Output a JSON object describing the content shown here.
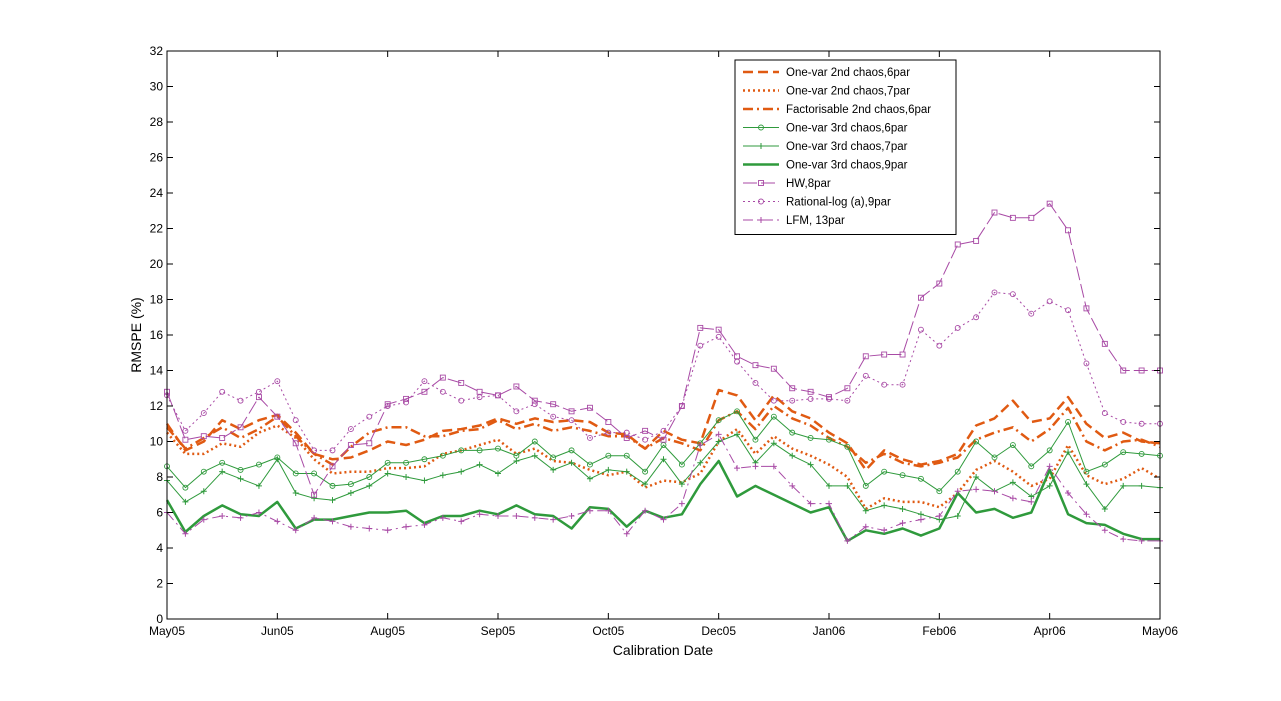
{
  "chart_data": {
    "type": "line",
    "title": "",
    "xlabel": "Calibration Date",
    "ylabel": "RMSPE (%)",
    "xlim": [
      0,
      54
    ],
    "ylim": [
      0,
      32
    ],
    "yticks": [
      0,
      2,
      4,
      6,
      8,
      10,
      12,
      14,
      16,
      18,
      20,
      22,
      24,
      26,
      28,
      30,
      32
    ],
    "xtick_positions": [
      0,
      6,
      12,
      18,
      24,
      30,
      36,
      42,
      48,
      54
    ],
    "xtick_labels": [
      "May05",
      "Jun05",
      "Aug05",
      "Sep05",
      "Oct05",
      "Dec05",
      "Jan06",
      "Feb06",
      "Apr06",
      "May06"
    ],
    "legend_position": "top-right",
    "grid": false,
    "x": [
      0,
      1,
      2,
      3,
      4,
      5,
      6,
      7,
      8,
      9,
      10,
      11,
      12,
      13,
      14,
      15,
      16,
      17,
      18,
      19,
      20,
      21,
      22,
      23,
      24,
      25,
      26,
      27,
      28,
      29,
      30,
      31,
      32,
      33,
      34,
      35,
      36,
      37,
      38,
      39,
      40,
      41,
      42,
      43,
      44,
      45,
      46,
      47,
      48,
      49,
      50,
      51,
      52,
      53,
      54
    ],
    "series": [
      {
        "name": "One-var 2nd chaos,6par",
        "color": "#e05a12",
        "dash": "dashed",
        "width": 2.5,
        "marker": "none",
        "values": [
          11.0,
          9.5,
          10.0,
          11.2,
          10.7,
          11.2,
          11.5,
          10.5,
          9.3,
          9.0,
          9.1,
          9.5,
          10.0,
          9.8,
          10.1,
          10.6,
          10.7,
          10.9,
          11.3,
          11.0,
          11.3,
          11.1,
          11.2,
          11.1,
          10.5,
          10.4,
          9.6,
          10.6,
          10.1,
          9.9,
          12.9,
          12.6,
          11.2,
          12.6,
          11.7,
          11.3,
          10.5,
          9.9,
          8.4,
          9.5,
          9.0,
          8.7,
          8.9,
          9.3,
          10.9,
          11.3,
          12.3,
          11.1,
          11.3,
          12.5,
          11.0,
          10.2,
          10.5,
          10.0,
          9.9
        ]
      },
      {
        "name": "One-var 2nd chaos,7par",
        "color": "#e05a12",
        "dash": "dotted",
        "width": 2.5,
        "marker": "none",
        "values": [
          10.5,
          9.3,
          9.3,
          9.9,
          9.7,
          10.5,
          10.9,
          10.2,
          9.0,
          8.2,
          8.3,
          8.3,
          8.5,
          8.5,
          8.6,
          9.3,
          9.5,
          9.8,
          10.1,
          9.3,
          9.6,
          8.9,
          8.8,
          8.4,
          8.1,
          8.3,
          7.4,
          7.8,
          7.7,
          8.2,
          10.0,
          10.7,
          9.3,
          10.3,
          9.6,
          9.2,
          8.7,
          8.0,
          6.2,
          6.8,
          6.6,
          6.6,
          6.3,
          7.1,
          8.4,
          8.9,
          8.3,
          7.5,
          7.9,
          9.8,
          8.1,
          7.6,
          7.9,
          8.5,
          7.9
        ]
      },
      {
        "name": "Factorisable 2nd chaos,6par",
        "color": "#e05a12",
        "dash": "dashdot",
        "width": 2.5,
        "marker": "none",
        "values": [
          10.8,
          9.6,
          10.2,
          10.8,
          10.2,
          10.7,
          11.4,
          10.3,
          9.3,
          8.7,
          9.7,
          10.5,
          10.8,
          10.8,
          10.3,
          10.3,
          10.6,
          10.7,
          11.2,
          10.7,
          11.0,
          10.6,
          10.8,
          10.6,
          10.3,
          10.3,
          9.6,
          10.2,
          9.9,
          9.5,
          11.2,
          11.7,
          10.7,
          12.0,
          11.3,
          10.9,
          10.2,
          9.7,
          8.8,
          9.3,
          8.8,
          8.6,
          8.8,
          9.1,
          10.1,
          10.5,
          10.8,
          10.0,
          10.7,
          11.9,
          10.0,
          9.5,
          10.0,
          10.1,
          9.7
        ]
      },
      {
        "name": "One-var 3rd chaos,6par",
        "color": "#2f9a3c",
        "dash": "solid",
        "width": 1,
        "marker": "circle",
        "values": [
          8.6,
          7.4,
          8.3,
          8.8,
          8.4,
          8.7,
          9.1,
          8.2,
          8.2,
          7.5,
          7.6,
          8.0,
          8.8,
          8.8,
          9.0,
          9.2,
          9.5,
          9.5,
          9.6,
          9.2,
          10.0,
          9.1,
          9.5,
          8.7,
          9.2,
          9.2,
          8.3,
          9.8,
          8.7,
          9.9,
          11.2,
          11.7,
          10.1,
          11.4,
          10.5,
          10.2,
          10.1,
          9.7,
          7.5,
          8.3,
          8.1,
          7.9,
          7.2,
          8.3,
          10.0,
          9.1,
          9.8,
          8.6,
          9.5,
          11.1,
          8.3,
          8.7,
          9.4,
          9.3,
          9.2
        ]
      },
      {
        "name": "One-var 3rd chaos,7par",
        "color": "#2f9a3c",
        "dash": "solid",
        "width": 1,
        "marker": "plus",
        "values": [
          7.8,
          6.6,
          7.2,
          8.3,
          7.9,
          7.5,
          9.0,
          7.1,
          6.8,
          6.7,
          7.1,
          7.5,
          8.2,
          8.0,
          7.8,
          8.1,
          8.3,
          8.7,
          8.2,
          8.9,
          9.2,
          8.4,
          8.8,
          7.9,
          8.4,
          8.3,
          7.6,
          9.0,
          7.6,
          8.8,
          10.0,
          10.4,
          8.8,
          9.9,
          9.2,
          8.7,
          7.5,
          7.5,
          6.1,
          6.4,
          6.2,
          5.9,
          5.6,
          5.8,
          8.0,
          7.2,
          7.7,
          6.9,
          7.5,
          9.4,
          7.6,
          6.2,
          7.5,
          7.5,
          7.4
        ]
      },
      {
        "name": "One-var 3rd chaos,9par",
        "color": "#2f9a3c",
        "dash": "solid",
        "width": 2.5,
        "marker": "none",
        "values": [
          6.7,
          4.9,
          5.8,
          6.4,
          5.9,
          5.8,
          6.6,
          5.1,
          5.6,
          5.6,
          5.8,
          6.0,
          6.0,
          6.1,
          5.4,
          5.8,
          5.8,
          6.1,
          5.9,
          6.4,
          5.9,
          5.8,
          5.1,
          6.3,
          6.2,
          5.2,
          6.1,
          5.7,
          5.9,
          7.6,
          8.9,
          6.9,
          7.5,
          7.0,
          6.5,
          6.0,
          6.3,
          4.4,
          5.0,
          4.8,
          5.1,
          4.7,
          5.1,
          7.1,
          6.0,
          6.2,
          5.7,
          6.0,
          8.4,
          5.9,
          5.4,
          5.3,
          4.8,
          4.5,
          4.5
        ]
      },
      {
        "name": "HW,8par",
        "color": "#a84aa5",
        "dash": "longdash",
        "width": 1,
        "marker": "square",
        "values": [
          12.8,
          10.1,
          10.3,
          10.2,
          10.8,
          12.5,
          11.4,
          9.9,
          7.0,
          8.6,
          9.8,
          9.9,
          12.1,
          12.4,
          12.8,
          13.6,
          13.3,
          12.8,
          12.6,
          13.1,
          12.3,
          12.1,
          11.7,
          11.9,
          11.1,
          10.2,
          10.6,
          10.1,
          12.0,
          16.4,
          16.3,
          14.8,
          14.3,
          14.1,
          13.0,
          12.8,
          12.5,
          13.0,
          14.8,
          14.9,
          14.9,
          18.1,
          18.9,
          21.1,
          21.3,
          22.9,
          22.6,
          22.6,
          23.4,
          21.9,
          17.5,
          15.5,
          14.0,
          14.0,
          14.0
        ]
      },
      {
        "name": "Rational-log (a),9par",
        "color": "#a84aa5",
        "dash": "dotted",
        "width": 1,
        "marker": "circle",
        "values": [
          12.6,
          10.6,
          11.6,
          12.8,
          12.3,
          12.8,
          13.4,
          11.2,
          9.5,
          9.5,
          10.7,
          11.4,
          12.0,
          12.2,
          13.4,
          12.8,
          12.3,
          12.5,
          12.6,
          11.7,
          12.1,
          11.4,
          11.2,
          10.2,
          10.5,
          10.5,
          10.1,
          10.6,
          12.0,
          15.4,
          15.9,
          14.5,
          13.3,
          12.3,
          12.3,
          12.4,
          12.4,
          12.3,
          13.7,
          13.2,
          13.2,
          16.3,
          15.4,
          16.4,
          17.0,
          18.4,
          18.3,
          17.2,
          17.9,
          17.4,
          14.4,
          11.6,
          11.1,
          11.0,
          11.0
        ]
      },
      {
        "name": "LFM, 13par",
        "color": "#a84aa5",
        "dash": "dashdot",
        "width": 1,
        "marker": "plus",
        "values": [
          6.0,
          4.8,
          5.6,
          5.8,
          5.7,
          6.0,
          5.5,
          5.0,
          5.7,
          5.5,
          5.2,
          5.1,
          5.0,
          5.2,
          5.3,
          5.7,
          5.5,
          5.9,
          5.8,
          5.8,
          5.7,
          5.6,
          5.8,
          6.1,
          6.1,
          4.8,
          6.1,
          5.6,
          6.5,
          9.8,
          10.4,
          8.5,
          8.6,
          8.6,
          7.5,
          6.5,
          6.5,
          4.4,
          5.2,
          5.0,
          5.4,
          5.6,
          5.8,
          7.2,
          7.3,
          7.2,
          6.8,
          6.6,
          8.6,
          7.1,
          5.9,
          5.0,
          4.5,
          4.4,
          4.4
        ]
      }
    ]
  }
}
